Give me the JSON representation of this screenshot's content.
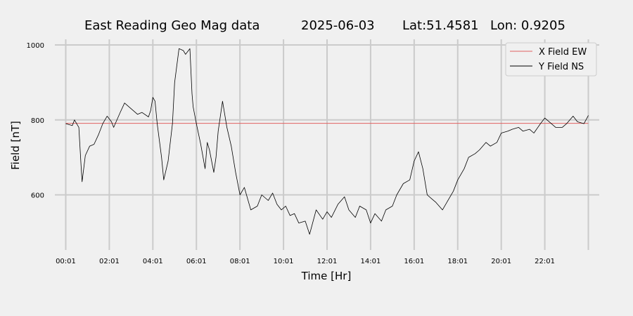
{
  "chart_data": {
    "type": "line",
    "title_parts": [
      "East Reading Geo Mag data",
      "2025-06-03",
      "Lat:51.4581",
      "Lon: 0.9205"
    ],
    "xlabel": "Time  [Hr]",
    "ylabel": "Field  [nT]",
    "x_unit": "hours",
    "xlim": [
      -0.5,
      24.5
    ],
    "ylim": [
      453,
      1015
    ],
    "x_ticks": [
      0,
      2,
      4,
      6,
      8,
      10,
      12,
      14,
      16,
      18,
      20,
      22,
      24
    ],
    "x_tick_labels": [
      "00:01",
      "02:01",
      "04:01",
      "06:01",
      "08:01",
      "10:01",
      "12:01",
      "14:01",
      "16:01",
      "18:01",
      "20:01",
      "22:01",
      ""
    ],
    "y_ticks": [
      600,
      800,
      1000
    ],
    "y_tick_labels": [
      "600",
      "800",
      "1000"
    ],
    "grid": true,
    "legend_position": "top-right",
    "colors": {
      "x_field": "#e06060",
      "y_field": "#000000",
      "grid": "#cbcbcb",
      "background": "#f0f0f0"
    },
    "series": [
      {
        "name": "X Field EW",
        "x": [
          0,
          24
        ],
        "values": [
          791,
          791
        ]
      },
      {
        "name": "Y Field NS",
        "x": [
          0,
          0.3,
          0.4,
          0.6,
          0.7,
          0.75,
          0.9,
          1.1,
          1.3,
          1.5,
          1.7,
          1.9,
          2.1,
          2.2,
          2.5,
          2.7,
          3.0,
          3.3,
          3.5,
          3.8,
          3.9,
          4.0,
          4.1,
          4.2,
          4.4,
          4.5,
          4.7,
          4.9,
          5.0,
          5.2,
          5.4,
          5.5,
          5.7,
          5.8,
          5.85,
          6.0,
          6.2,
          6.4,
          6.5,
          6.6,
          6.8,
          6.9,
          7.0,
          7.2,
          7.4,
          7.6,
          7.8,
          8.0,
          8.2,
          8.5,
          8.8,
          9.0,
          9.3,
          9.5,
          9.7,
          9.9,
          10.1,
          10.3,
          10.5,
          10.7,
          11.0,
          11.2,
          11.5,
          11.8,
          12.0,
          12.2,
          12.5,
          12.8,
          13.0,
          13.3,
          13.5,
          13.8,
          14.0,
          14.2,
          14.5,
          14.7,
          15.0,
          15.2,
          15.5,
          15.8,
          16.0,
          16.2,
          16.4,
          16.6,
          16.8,
          17.0,
          17.3,
          17.5,
          17.8,
          18.0,
          18.3,
          18.5,
          18.8,
          19.0,
          19.3,
          19.5,
          19.8,
          20.0,
          20.3,
          20.5,
          20.8,
          21.0,
          21.3,
          21.5,
          21.8,
          22.0,
          22.3,
          22.5,
          22.8,
          23.0,
          23.3,
          23.5,
          23.8,
          24.0
        ],
        "values": [
          790,
          785,
          800,
          780,
          680,
          635,
          705,
          730,
          735,
          760,
          790,
          810,
          795,
          780,
          820,
          845,
          830,
          815,
          820,
          808,
          825,
          860,
          850,
          790,
          700,
          640,
          690,
          790,
          900,
          990,
          985,
          975,
          990,
          870,
          835,
          790,
          735,
          670,
          740,
          720,
          660,
          700,
          770,
          850,
          780,
          730,
          660,
          600,
          620,
          560,
          570,
          600,
          585,
          605,
          575,
          560,
          570,
          545,
          550,
          525,
          530,
          495,
          560,
          535,
          555,
          540,
          575,
          595,
          560,
          540,
          570,
          560,
          525,
          550,
          530,
          560,
          570,
          600,
          630,
          640,
          690,
          715,
          670,
          600,
          590,
          580,
          560,
          580,
          610,
          640,
          670,
          700,
          710,
          720,
          740,
          730,
          740,
          765,
          770,
          775,
          780,
          770,
          775,
          765,
          790,
          805,
          790,
          780,
          780,
          790,
          810,
          795,
          790,
          812
        ]
      }
    ]
  }
}
